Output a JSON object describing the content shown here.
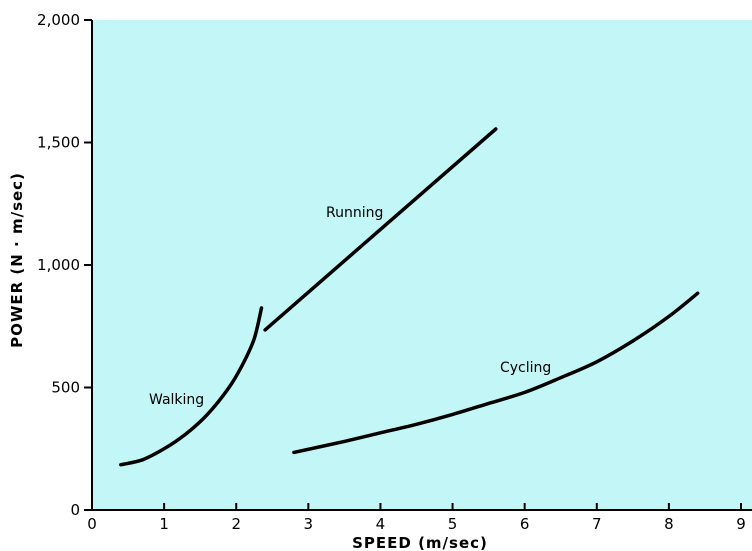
{
  "chart_data": {
    "type": "line",
    "title": "",
    "xlabel": "SPEED (m/sec)",
    "ylabel": "POWER (N · m/sec)",
    "xlim": [
      0,
      9
    ],
    "ylim": [
      0,
      2000
    ],
    "x_ticks": [
      "0",
      "1",
      "2",
      "3",
      "4",
      "5",
      "6",
      "7",
      "8",
      "9"
    ],
    "y_ticks": [
      "0",
      "500",
      "1,000",
      "1,500",
      "2,000"
    ],
    "grid": false,
    "background_color": "#c2f6f7",
    "line_color": "#000000",
    "series": [
      {
        "name": "Walking",
        "x": [
          0.4,
          0.7,
          1.0,
          1.3,
          1.6,
          1.9,
          2.1,
          2.25,
          2.35
        ],
        "y": [
          185,
          205,
          250,
          310,
          390,
          500,
          600,
          700,
          825
        ]
      },
      {
        "name": "Running",
        "x": [
          2.4,
          5.6
        ],
        "y": [
          735,
          1555
        ]
      },
      {
        "name": "Cycling",
        "x": [
          2.8,
          3.5,
          4.0,
          4.5,
          5.0,
          5.5,
          6.0,
          6.5,
          7.0,
          7.5,
          8.0,
          8.4
        ],
        "y": [
          235,
          280,
          315,
          350,
          390,
          435,
          480,
          540,
          605,
          690,
          790,
          885
        ]
      }
    ]
  }
}
